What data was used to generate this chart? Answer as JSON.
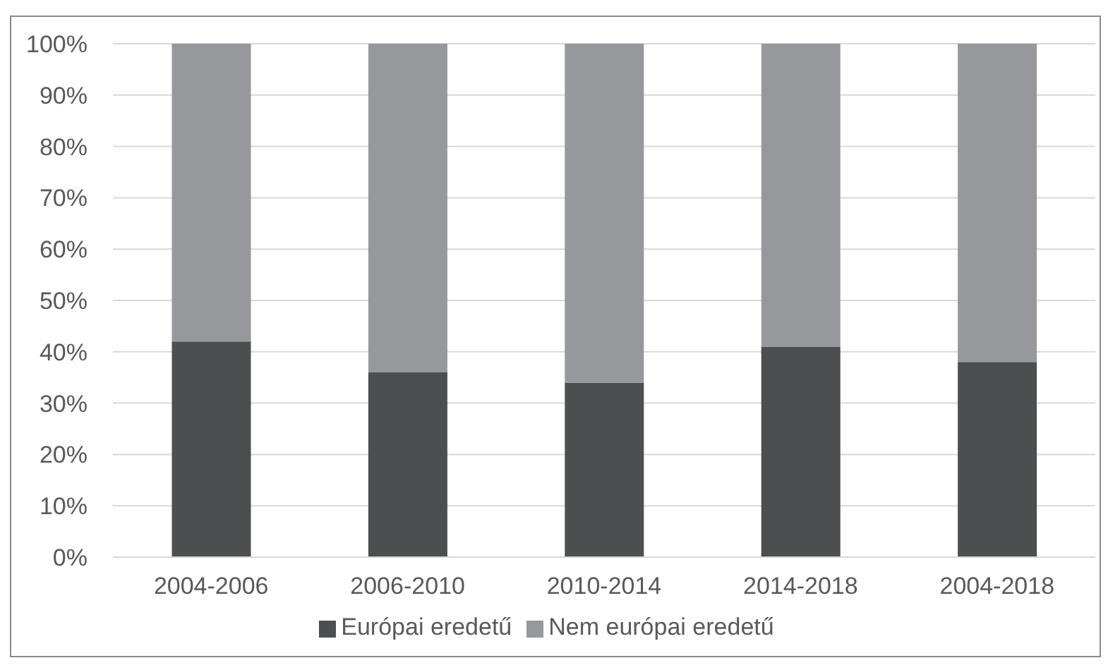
{
  "chart_data": {
    "type": "bar",
    "stacked": true,
    "categories": [
      "2004-2006",
      "2006-2010",
      "2010-2014",
      "2014-2018",
      "2004-2018"
    ],
    "series": [
      {
        "name": "Európai eredetű",
        "color": "#4d4e50",
        "values": [
          42,
          36,
          34,
          41,
          38
        ]
      },
      {
        "name": "Nem európai eredetű",
        "color": "#97989c",
        "values": [
          58,
          64,
          66,
          59,
          62
        ]
      }
    ],
    "ylim": [
      0,
      100
    ],
    "yticks": [
      {
        "value": 0,
        "label": "0%"
      },
      {
        "value": 10,
        "label": "10%"
      },
      {
        "value": 20,
        "label": "20%"
      },
      {
        "value": 30,
        "label": "30%"
      },
      {
        "value": 40,
        "label": "40%"
      },
      {
        "value": 50,
        "label": "50%"
      },
      {
        "value": 60,
        "label": "60%"
      },
      {
        "value": 70,
        "label": "70%"
      },
      {
        "value": 80,
        "label": "80%"
      },
      {
        "value": 90,
        "label": "90%"
      },
      {
        "value": 100,
        "label": "100%"
      }
    ],
    "grid": "y",
    "legend": "bottom"
  }
}
